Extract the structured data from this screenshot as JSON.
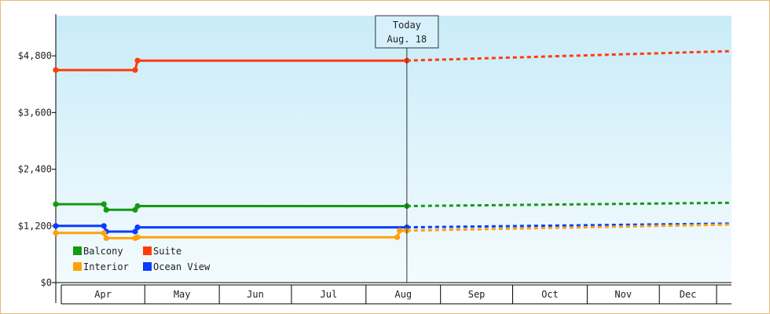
{
  "chart_data": {
    "type": "line",
    "style": "step",
    "x_axis": {
      "labels": [
        "Apr",
        "May",
        "Jun",
        "Jul",
        "Aug",
        "Sep",
        "Oct",
        "Nov",
        "Dec"
      ],
      "start": "2024-03-25",
      "end": "2024-12-31"
    },
    "y_axis": {
      "ticks": [
        0,
        1200,
        2400,
        3600,
        4800
      ],
      "tick_labels": [
        "$0",
        "$1,200",
        "$2,400",
        "$3,600",
        "$4,800"
      ],
      "ylim": [
        0,
        5650
      ],
      "grid": false
    },
    "today": {
      "date": "2024-08-18",
      "label_line1": "Today",
      "label_line2": "Aug. 18"
    },
    "legend": {
      "placement": "bottom-left",
      "entries": [
        {
          "name": "Balcony",
          "color": "#139a13"
        },
        {
          "name": "Suite",
          "color": "#ff3b0a"
        },
        {
          "name": "Interior",
          "color": "#ffa10a"
        },
        {
          "name": "Ocean View",
          "color": "#0a3bff"
        }
      ]
    },
    "series": [
      {
        "name": "Suite",
        "color": "#ff3b0a",
        "points": [
          {
            "x": "2024-03-25",
            "y": 4500
          },
          {
            "x": "2024-04-27",
            "y": 4500
          },
          {
            "x": "2024-04-28",
            "y": 4700
          },
          {
            "x": "2024-08-18",
            "y": 4700
          }
        ],
        "forecast": [
          {
            "x": "2024-08-18",
            "y": 4700
          },
          {
            "x": "2024-12-31",
            "y": 4900
          }
        ]
      },
      {
        "name": "Balcony",
        "color": "#139a13",
        "points": [
          {
            "x": "2024-03-25",
            "y": 1660
          },
          {
            "x": "2024-04-14",
            "y": 1660
          },
          {
            "x": "2024-04-15",
            "y": 1540
          },
          {
            "x": "2024-04-27",
            "y": 1540
          },
          {
            "x": "2024-04-28",
            "y": 1620
          },
          {
            "x": "2024-08-18",
            "y": 1620
          }
        ],
        "forecast": [
          {
            "x": "2024-08-18",
            "y": 1620
          },
          {
            "x": "2024-12-31",
            "y": 1690
          }
        ]
      },
      {
        "name": "Ocean View",
        "color": "#0a3bff",
        "points": [
          {
            "x": "2024-03-25",
            "y": 1200
          },
          {
            "x": "2024-04-14",
            "y": 1200
          },
          {
            "x": "2024-04-15",
            "y": 1080
          },
          {
            "x": "2024-04-27",
            "y": 1080
          },
          {
            "x": "2024-04-28",
            "y": 1170
          },
          {
            "x": "2024-08-18",
            "y": 1170
          }
        ],
        "forecast": [
          {
            "x": "2024-08-18",
            "y": 1170
          },
          {
            "x": "2024-12-31",
            "y": 1250
          }
        ]
      },
      {
        "name": "Interior",
        "color": "#ffa10a",
        "points": [
          {
            "x": "2024-03-25",
            "y": 1050
          },
          {
            "x": "2024-04-14",
            "y": 1050
          },
          {
            "x": "2024-04-15",
            "y": 940
          },
          {
            "x": "2024-04-27",
            "y": 940
          },
          {
            "x": "2024-04-28",
            "y": 960
          },
          {
            "x": "2024-08-14",
            "y": 960
          },
          {
            "x": "2024-08-15",
            "y": 1100
          },
          {
            "x": "2024-08-18",
            "y": 1100
          }
        ],
        "forecast": [
          {
            "x": "2024-08-18",
            "y": 1100
          },
          {
            "x": "2024-12-31",
            "y": 1230
          }
        ]
      }
    ]
  }
}
